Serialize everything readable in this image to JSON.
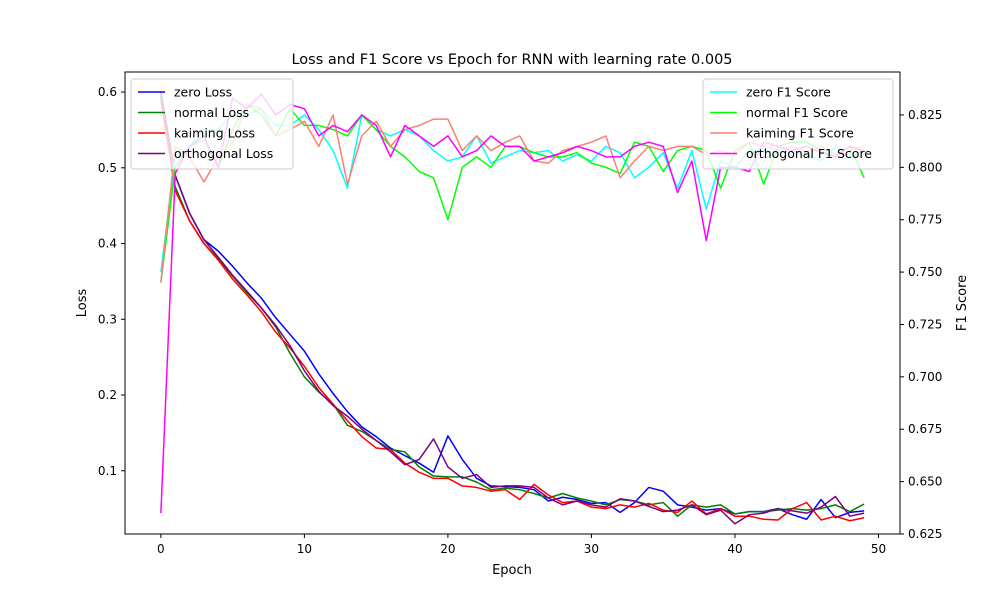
{
  "chart_data": {
    "type": "line",
    "title": "Loss and F1 Score vs Epoch for RNN with learning rate 0.005",
    "xlabel": "Epoch",
    "ylabel_left": "Loss",
    "ylabel_right": "F1 Score",
    "xlim": [
      -2.5,
      51.5
    ],
    "ylim_left": [
      0.0165,
      0.6265
    ],
    "ylim_right": [
      0.625,
      0.8455
    ],
    "x_ticks": [
      0,
      10,
      20,
      30,
      40,
      50
    ],
    "y_ticks_left": [
      0.1,
      0.2,
      0.3,
      0.4,
      0.5,
      0.6
    ],
    "y_ticks_right": [
      0.625,
      0.65,
      0.675,
      0.7,
      0.725,
      0.75,
      0.775,
      0.8,
      0.825
    ],
    "grid": false,
    "legend_left_placement": "upper-left",
    "legend_right_placement": "upper-right",
    "loss_series": [
      {
        "name": "zero Loss",
        "color": "#0000ff",
        "values": [
          0.6,
          0.49,
          0.44,
          0.405,
          0.39,
          0.37,
          0.348,
          0.328,
          0.302,
          0.28,
          0.258,
          0.228,
          0.202,
          0.178,
          0.158,
          0.145,
          0.13,
          0.12,
          0.11,
          0.098,
          0.146,
          0.115,
          0.09,
          0.08,
          0.079,
          0.078,
          0.075,
          0.06,
          0.065,
          0.062,
          0.057,
          0.058,
          0.045,
          0.058,
          0.078,
          0.073,
          0.055,
          0.052,
          0.048,
          0.05,
          0.043,
          0.046,
          0.046,
          0.05,
          0.042,
          0.036,
          0.062,
          0.038,
          0.045,
          0.047
        ]
      },
      {
        "name": "normal Loss",
        "color": "#008000",
        "values": [
          0.595,
          0.475,
          0.43,
          0.4,
          0.38,
          0.357,
          0.335,
          0.315,
          0.29,
          0.255,
          0.224,
          0.204,
          0.188,
          0.16,
          0.152,
          0.14,
          0.128,
          0.125,
          0.105,
          0.093,
          0.092,
          0.092,
          0.085,
          0.075,
          0.077,
          0.075,
          0.07,
          0.064,
          0.07,
          0.064,
          0.06,
          0.055,
          0.062,
          0.06,
          0.055,
          0.058,
          0.04,
          0.055,
          0.052,
          0.055,
          0.043,
          0.046,
          0.046,
          0.048,
          0.05,
          0.048,
          0.05,
          0.055,
          0.046,
          0.056
        ]
      },
      {
        "name": "kaiming Loss",
        "color": "#ff0000",
        "values": [
          0.59,
          0.47,
          0.43,
          0.4,
          0.378,
          0.353,
          0.332,
          0.31,
          0.283,
          0.262,
          0.238,
          0.21,
          0.188,
          0.166,
          0.145,
          0.13,
          0.128,
          0.11,
          0.098,
          0.09,
          0.09,
          0.08,
          0.078,
          0.073,
          0.075,
          0.062,
          0.082,
          0.068,
          0.058,
          0.06,
          0.052,
          0.05,
          0.055,
          0.052,
          0.057,
          0.048,
          0.045,
          0.06,
          0.043,
          0.05,
          0.04,
          0.04,
          0.036,
          0.035,
          0.05,
          0.058,
          0.035,
          0.04,
          0.034,
          0.038
        ]
      },
      {
        "name": "orthogonal Loss",
        "color": "#800080",
        "values": [
          0.6,
          0.49,
          0.44,
          0.405,
          0.382,
          0.358,
          0.337,
          0.315,
          0.292,
          0.265,
          0.232,
          0.205,
          0.186,
          0.172,
          0.155,
          0.14,
          0.125,
          0.108,
          0.115,
          0.142,
          0.105,
          0.09,
          0.095,
          0.078,
          0.08,
          0.08,
          0.078,
          0.064,
          0.055,
          0.06,
          0.055,
          0.052,
          0.063,
          0.06,
          0.053,
          0.046,
          0.048,
          0.055,
          0.042,
          0.048,
          0.03,
          0.042,
          0.044,
          0.05,
          0.047,
          0.044,
          0.052,
          0.066,
          0.04,
          0.044
        ]
      }
    ],
    "f1_series": [
      {
        "name": "zero F1 Score",
        "color": "#00ffff",
        "values": [
          0.75,
          0.805,
          0.81,
          0.818,
          0.818,
          0.825,
          0.825,
          0.828,
          0.82,
          0.82,
          0.825,
          0.818,
          0.808,
          0.79,
          0.825,
          0.818,
          0.815,
          0.818,
          0.815,
          0.808,
          0.803,
          0.805,
          0.815,
          0.802,
          0.805,
          0.808,
          0.807,
          0.808,
          0.803,
          0.806,
          0.803,
          0.81,
          0.807,
          0.795,
          0.8,
          0.807,
          0.79,
          0.808,
          0.78,
          0.803,
          0.8,
          0.808,
          0.808,
          0.807,
          0.808,
          0.806,
          0.803,
          0.81,
          0.805,
          0.808
        ]
      },
      {
        "name": "normal F1 Score",
        "color": "#00ff00",
        "values": [
          0.745,
          0.8,
          0.81,
          0.813,
          0.8,
          0.818,
          0.83,
          0.825,
          0.815,
          0.828,
          0.82,
          0.82,
          0.818,
          0.815,
          0.825,
          0.818,
          0.81,
          0.805,
          0.798,
          0.795,
          0.775,
          0.8,
          0.805,
          0.8,
          0.81,
          0.81,
          0.807,
          0.805,
          0.805,
          0.807,
          0.802,
          0.8,
          0.797,
          0.812,
          0.81,
          0.798,
          0.808,
          0.81,
          0.808,
          0.79,
          0.808,
          0.812,
          0.792,
          0.81,
          0.812,
          0.812,
          0.808,
          0.805,
          0.81,
          0.795
        ]
      },
      {
        "name": "kaiming F1 Score",
        "color": "#fa8072",
        "values": [
          0.745,
          0.81,
          0.805,
          0.793,
          0.805,
          0.812,
          0.83,
          0.828,
          0.815,
          0.818,
          0.822,
          0.81,
          0.825,
          0.792,
          0.815,
          0.822,
          0.81,
          0.818,
          0.82,
          0.823,
          0.823,
          0.808,
          0.815,
          0.808,
          0.812,
          0.815,
          0.803,
          0.802,
          0.808,
          0.81,
          0.812,
          0.815,
          0.795,
          0.803,
          0.81,
          0.808,
          0.81,
          0.81,
          0.806,
          0.808,
          0.806,
          0.812,
          0.81,
          0.808,
          0.81,
          0.807,
          0.81,
          0.806,
          0.808,
          0.81
        ]
      },
      {
        "name": "orthogonal F1 Score",
        "color": "#ff00ff",
        "values": [
          0.635,
          0.797,
          0.81,
          0.815,
          0.8,
          0.833,
          0.828,
          0.835,
          0.825,
          0.83,
          0.828,
          0.815,
          0.82,
          0.817,
          0.825,
          0.82,
          0.805,
          0.82,
          0.815,
          0.81,
          0.815,
          0.805,
          0.808,
          0.815,
          0.81,
          0.81,
          0.803,
          0.805,
          0.807,
          0.81,
          0.808,
          0.805,
          0.805,
          0.81,
          0.812,
          0.81,
          0.788,
          0.803,
          0.765,
          0.8,
          0.8,
          0.798,
          0.812,
          0.81,
          0.808,
          0.81,
          0.807,
          0.805,
          0.81,
          0.808
        ]
      }
    ]
  }
}
